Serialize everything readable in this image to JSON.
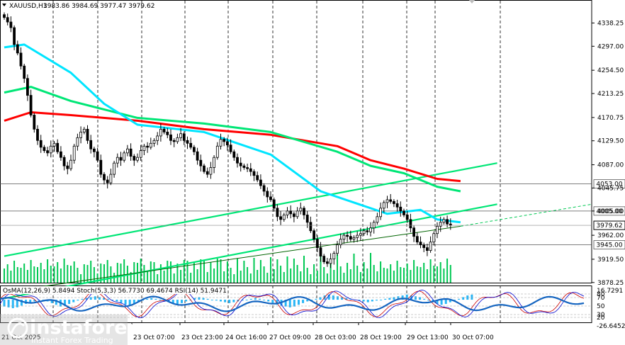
{
  "header": {
    "symbol": "XAUUSD,H1",
    "ohlc": "3983.86 3984.69 3977.47 3979.62"
  },
  "chart_data": {
    "type": "candlestick",
    "symbol": "XAUUSD",
    "timeframe": "H1",
    "ylim": [
      3878.0,
      4379.0
    ],
    "yticks": [
      4338.25,
      4297.0,
      4254.5,
      4213.25,
      4170.75,
      4129.5,
      4087.0,
      4045.75,
      4005.0,
      3962.0,
      3919.5,
      3878.25
    ],
    "ytick_labels": [
      "4338.25",
      "4297.00",
      "4254.50",
      "4213.25",
      "4170.75",
      "4129.50",
      "4087.00",
      "4045.75",
      "4005.00",
      "3962.00",
      "3919.50",
      "3878.25"
    ],
    "xtick_labels": [
      "23 Oct 07:00",
      "23 Oct 23:00",
      "24 Oct 16:00",
      "27 Oct 09:00",
      "28 Oct 03:00",
      "28 Oct 19:00",
      "29 Oct 13:00",
      "30 Oct 07:00"
    ],
    "first_xtick_partial": "21 Oct 2025",
    "last_price": 3979.62,
    "level_lines": [
      {
        "label": "4053.00",
        "value": 4053.0
      },
      {
        "label": "4005.00",
        "value": 4005.0
      },
      {
        "label": "3945.00",
        "value": 3945.0
      }
    ],
    "close_series": [
      4348,
      4340,
      4330,
      4300,
      4285,
      4262,
      4240,
      4210,
      4175,
      4150,
      4130,
      4118,
      4112,
      4108,
      4120,
      4125,
      4110,
      4100,
      4085,
      4080,
      4095,
      4120,
      4135,
      4145,
      4150,
      4130,
      4115,
      4110,
      4095,
      4070,
      4060,
      4055,
      4070,
      4090,
      4100,
      4095,
      4108,
      4115,
      4102,
      4095,
      4100,
      4112,
      4120,
      4118,
      4125,
      4130,
      4138,
      4150,
      4145,
      4140,
      4130,
      4128,
      4135,
      4142,
      4130,
      4125,
      4118,
      4110,
      4095,
      4085,
      4075,
      4070,
      4082,
      4100,
      4120,
      4132,
      4128,
      4122,
      4110,
      4100,
      4090,
      4085,
      4082,
      4080,
      4075,
      4068,
      4060,
      4050,
      4040,
      4030,
      4025,
      4010,
      3995,
      3990,
      3998,
      4005,
      4000,
      3995,
      4005,
      4010,
      3998,
      3985,
      3970,
      3955,
      3940,
      3925,
      3915,
      3912,
      3920,
      3930,
      3945,
      3955,
      3962,
      3960,
      3955,
      3958,
      3962,
      3965,
      3970,
      3968,
      3975,
      3985,
      3995,
      4010,
      4020,
      4025,
      4022,
      4018,
      4012,
      4005,
      3998,
      3990,
      3975,
      3960,
      3950,
      3945,
      3940,
      3935,
      3950,
      3965,
      3978,
      3985,
      3990,
      3982,
      3979.62
    ],
    "ma_series": [
      {
        "name": "",
        "color": "#ff0000",
        "values": [
          [
            0,
            4165
          ],
          [
            8,
            4180
          ],
          [
            20,
            4175
          ],
          [
            40,
            4165
          ],
          [
            60,
            4150
          ],
          [
            80,
            4140
          ],
          [
            100,
            4120
          ],
          [
            110,
            4095
          ],
          [
            120,
            4080
          ],
          [
            130,
            4062
          ],
          [
            137,
            4058
          ]
        ]
      },
      {
        "name": "",
        "color": "#00e676",
        "values": [
          [
            0,
            4215
          ],
          [
            8,
            4225
          ],
          [
            20,
            4200
          ],
          [
            40,
            4170
          ],
          [
            60,
            4160
          ],
          [
            80,
            4145
          ],
          [
            100,
            4110
          ],
          [
            110,
            4085
          ],
          [
            120,
            4072
          ],
          [
            130,
            4048
          ],
          [
            137,
            4040
          ]
        ]
      },
      {
        "name": "",
        "color": "#00e5ff",
        "values": [
          [
            0,
            4295
          ],
          [
            6,
            4300
          ],
          [
            20,
            4250
          ],
          [
            30,
            4195
          ],
          [
            40,
            4158
          ],
          [
            60,
            4145
          ],
          [
            80,
            4105
          ],
          [
            95,
            4040
          ],
          [
            105,
            4020
          ],
          [
            115,
            4000
          ],
          [
            125,
            4007
          ],
          [
            130,
            3990
          ],
          [
            137,
            3985
          ]
        ]
      }
    ],
    "channel_lines": [
      {
        "name": "",
        "color": "#00e676",
        "from": [
          0,
          3925
        ],
        "to": [
          148,
          4090
        ]
      },
      {
        "name": "",
        "color": "#00e676",
        "from": [
          0,
          3850
        ],
        "to": [
          148,
          4017
        ]
      },
      {
        "name": "",
        "color": "#006400",
        "from": [
          10,
          3870
        ],
        "to": [
          137,
          3978
        ]
      }
    ],
    "indicator_panel": {
      "label": "OsMA(12,26,9) 5.8494   Stoch(5,3,3) 56.7730 69.4674   RSI(14) 51.9471",
      "osma_label": "OsMA(12,26,9) 5.8494",
      "stoch_label": "Stoch(5,3,3) 56.7730 69.4674",
      "rsi_label": "RSI(14) 51.9471",
      "ylim": [
        -26.6452,
        16.7291
      ],
      "top_label": "16.7291",
      "bottom_label": "-26.6452",
      "levels": [
        "80",
        "70",
        "50",
        "30",
        "20"
      ],
      "osma_values": [
        -8,
        -9,
        -10,
        -9,
        -7,
        -5,
        -3,
        -2,
        -1,
        0,
        -2,
        -4,
        -6,
        -8,
        -7,
        -5,
        -3,
        -1,
        1,
        2,
        3,
        4,
        3,
        2,
        1,
        0,
        -2,
        -4,
        -6,
        -7,
        -5,
        -3,
        -1,
        1,
        2,
        1,
        0,
        -1,
        -3,
        -5,
        -6,
        -4,
        -2,
        0,
        2,
        3,
        2,
        1,
        0,
        -1,
        -2,
        -3,
        -4,
        -3,
        -2,
        -1,
        0,
        1,
        2,
        1,
        0,
        -2,
        -4,
        -6,
        -7,
        -8,
        -9,
        -8,
        -6,
        -4,
        -2,
        0,
        1,
        3,
        5,
        6,
        5,
        4,
        3,
        2,
        1,
        0,
        -1,
        -2,
        -3,
        -2,
        -1,
        0,
        1,
        2,
        3,
        4,
        5,
        6,
        5,
        4,
        3,
        1,
        -1,
        -3,
        -5,
        -6,
        -5,
        -3,
        -1,
        1,
        3,
        5,
        6
      ]
    }
  },
  "watermark": {
    "brand": "instaforex",
    "tagline": "Instant Forex Trading"
  },
  "colors": {
    "background": "#ffffff",
    "candles": "#000000",
    "volume": "#00c853",
    "osma": "#29b6f6",
    "stoch_main": "#0000cc",
    "stoch_signal": "#cc0000",
    "rsi": "#1565c0",
    "price_badge": "#ffffff"
  }
}
